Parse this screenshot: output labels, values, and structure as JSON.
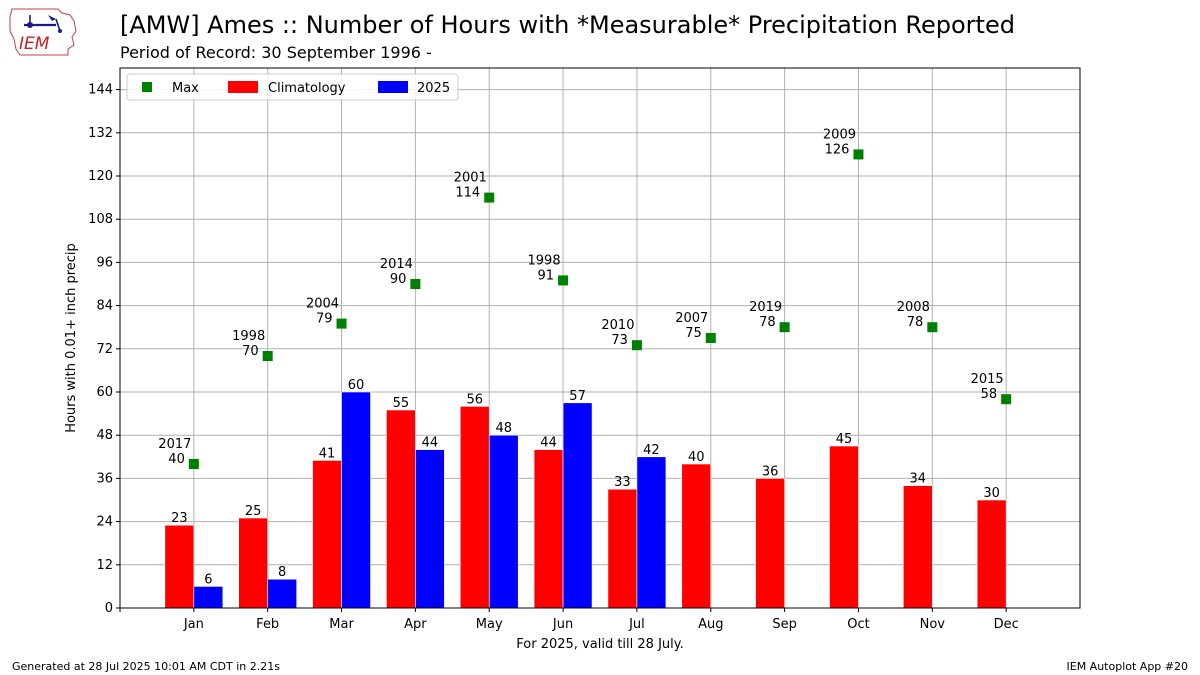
{
  "header": {
    "logo_text": "IEM",
    "title": "[AMW] Ames :: Number of Hours with *Measurable* Precipitation Reported",
    "subtitle": "Period of Record: 30 September 1996 -"
  },
  "footer": {
    "left": "Generated at 28 Jul 2025 10:01 AM CDT in 2.21s",
    "right": "IEM Autoplot App #20"
  },
  "colors": {
    "climatology": "#ff0000",
    "current": "#0000ff",
    "max": "#008000",
    "grid": "#b0b0b0"
  },
  "chart_data": {
    "type": "bar",
    "xlabel": "For 2025, valid till 28 July.",
    "ylabel": "Hours with 0.01+ inch precip",
    "ylim": [
      0,
      150
    ],
    "yticks": [
      0,
      12,
      24,
      36,
      48,
      60,
      72,
      84,
      96,
      108,
      120,
      132,
      144
    ],
    "grid": true,
    "legend_position": "top-left",
    "categories": [
      "Jan",
      "Feb",
      "Mar",
      "Apr",
      "May",
      "Jun",
      "Jul",
      "Aug",
      "Sep",
      "Oct",
      "Nov",
      "Dec"
    ],
    "series": [
      {
        "name": "Max",
        "kind": "marker",
        "values": [
          40,
          70,
          79,
          90,
          114,
          91,
          73,
          75,
          78,
          126,
          78,
          58
        ],
        "years": [
          "2017",
          "1998",
          "2004",
          "2014",
          "2001",
          "1998",
          "2010",
          "2007",
          "2019",
          "2009",
          "2008",
          "2015"
        ]
      },
      {
        "name": "Climatology",
        "kind": "bar",
        "values": [
          23,
          25,
          41,
          55,
          56,
          44,
          33,
          40,
          36,
          45,
          34,
          30
        ]
      },
      {
        "name": "2025",
        "kind": "bar",
        "values": [
          6,
          8,
          60,
          44,
          48,
          57,
          42,
          null,
          null,
          null,
          null,
          null
        ]
      }
    ]
  }
}
